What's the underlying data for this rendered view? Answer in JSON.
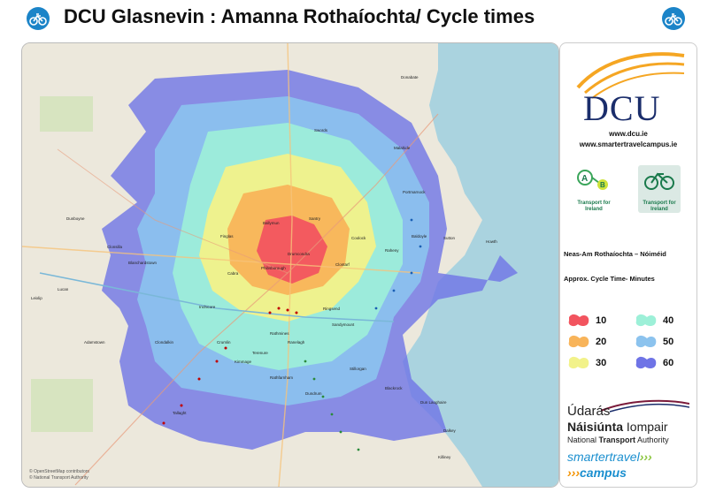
{
  "header": {
    "title": "DCU Glasnevin : Amanna Rothaíochta/ Cycle times",
    "icon_left": "bicycle-icon",
    "icon_right": "bicycle-icon",
    "badge_color": "#1b84c8"
  },
  "map": {
    "labels": [
      "Donabate",
      "Swords",
      "Portmarnock",
      "Malahide",
      "Baldoyle",
      "Howth",
      "Sutton",
      "Raheny",
      "Coolock",
      "Santry",
      "Ballymun",
      "Finglas",
      "Cabra",
      "Blanchardstown",
      "Clonsilla",
      "Lucan",
      "Clondalkin",
      "Tallaght",
      "Rathfarnham",
      "Dundrum",
      "Stillorgan",
      "Blackrock",
      "Dun Laoghaire",
      "Dalkey",
      "Killiney",
      "Clontarf",
      "Drumcondra",
      "Phibsborough",
      "Ranelagh",
      "Rathmines",
      "Sandymount",
      "Ringsend",
      "Inchicore",
      "Crumlin",
      "Terenure",
      "Kimmage",
      "Dunboyne",
      "Leixlip",
      "Adamstown"
    ],
    "attribution_1": "© OpenStreetMap contributors",
    "attribution_2": "© National Transport Authority"
  },
  "panel": {
    "brand": "DCU",
    "url_1": "www.dcu.ie",
    "url_2": "www.smartertravelcampus.ie",
    "ti_label_1": "Transport for Ireland",
    "ti_label_2": "Transport for Ireland",
    "legend_title_ga": "Neas-Am Rothaíochta – Nóiméid",
    "legend_title_en": "Approx. Cycle Time- Minutes",
    "legend": [
      {
        "value": "10",
        "color": "#f2545f"
      },
      {
        "value": "20",
        "color": "#f8b45a"
      },
      {
        "value": "30",
        "color": "#f2f28a"
      },
      {
        "value": "40",
        "color": "#9df0d8"
      },
      {
        "value": "50",
        "color": "#8cc3ee"
      },
      {
        "value": "60",
        "color": "#6f74e6"
      }
    ],
    "nta_line_1": "Údarás",
    "nta_line_2a": "Náisiúnta",
    "nta_line_2b": " Iompair",
    "nta_line_3a": "National ",
    "nta_line_3b": "Transport",
    "nta_line_3c": " Authority",
    "stc_line_1": "smartertravel",
    "stc_line_2": "campus"
  }
}
